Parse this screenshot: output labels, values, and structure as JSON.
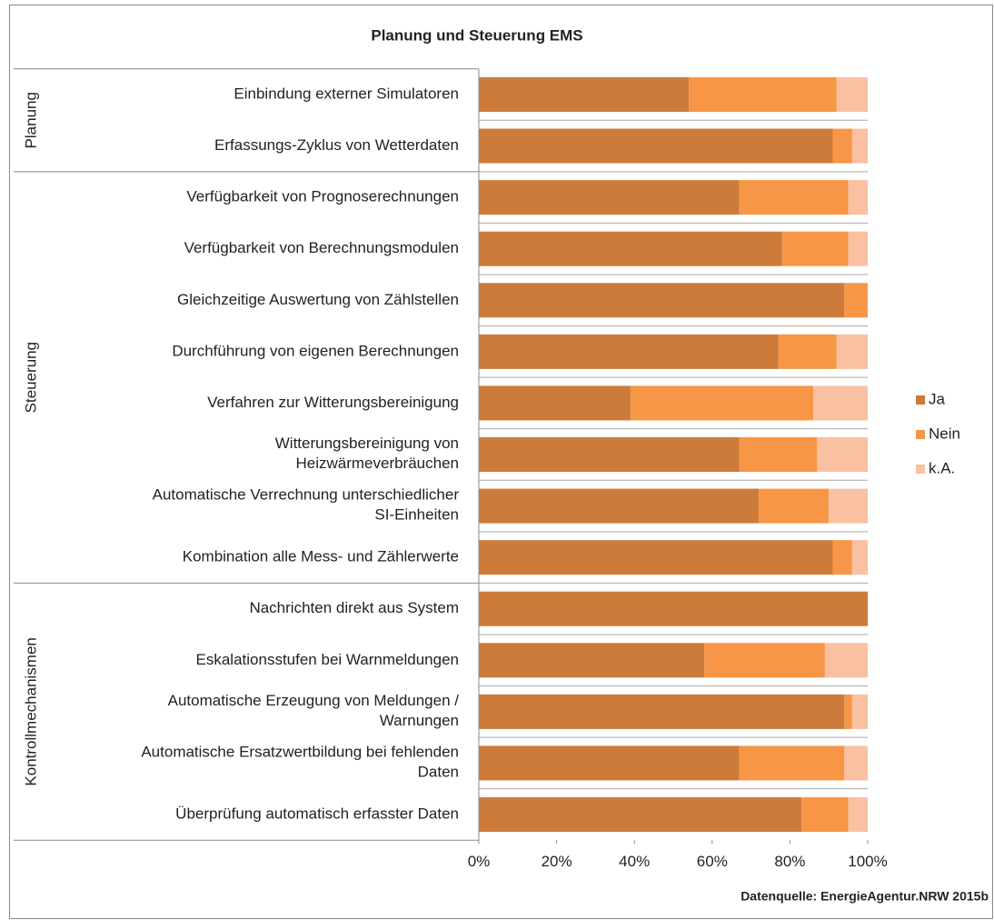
{
  "chart_data": {
    "type": "stacked_bar_horizontal",
    "title": "Planung und Steuerung EMS",
    "groups": [
      {
        "name": "Planung",
        "categories": [
          "Einbindung externer Simulatoren",
          "Erfassungs-Zyklus von Wetterdaten"
        ]
      },
      {
        "name": "Steuerung",
        "categories": [
          "Verfügbarkeit von Prognoserechnungen",
          "Verfügbarkeit von Berechnungsmodulen",
          "Gleichzeitige Auswertung von Zählstellen",
          "Durchführung von eigenen Berechnungen",
          "Verfahren zur Witterungsbereinigung",
          "Witterungsbereinigung von\nHeizwärmeverbräuchen",
          "Automatische Verrechnung unterschiedlicher\nSI-Einheiten",
          "Kombination alle Mess- und Zählerwerte"
        ]
      },
      {
        "name": "Kontrollmechanismen",
        "categories": [
          "Nachrichten direkt aus System",
          "Eskalationsstufen bei Warnmeldungen",
          "Automatische Erzeugung von Meldungen /\nWarnungen",
          "Automatische Ersatzwertbildung bei fehlenden\nDaten",
          "Überprüfung automatisch erfasster Daten"
        ]
      }
    ],
    "series": [
      {
        "name": "Ja",
        "color": "#cd7b3b",
        "values": [
          54,
          91,
          67,
          78,
          94,
          77,
          39,
          67,
          72,
          91,
          100,
          58,
          94,
          67,
          83
        ]
      },
      {
        "name": "Nein",
        "color": "#f79646",
        "values": [
          38,
          5,
          28,
          17,
          6,
          15,
          47,
          20,
          18,
          5,
          0,
          31,
          2,
          27,
          12
        ]
      },
      {
        "name": "k.A.",
        "color": "#f9c0a1",
        "values": [
          8,
          4,
          5,
          5,
          0,
          8,
          14,
          13,
          10,
          4,
          0,
          11,
          4,
          6,
          5
        ]
      }
    ],
    "xlim": [
      0,
      100
    ],
    "xticks": [
      {
        "value": 0,
        "label": "0%"
      },
      {
        "value": 20,
        "label": "20%"
      },
      {
        "value": 40,
        "label": "40%"
      },
      {
        "value": 60,
        "label": "60%"
      },
      {
        "value": 80,
        "label": "80%"
      },
      {
        "value": 100,
        "label": "100%"
      }
    ],
    "legend": "right",
    "source": "Datenquelle: EnergieAgentur.NRW 2015b"
  }
}
